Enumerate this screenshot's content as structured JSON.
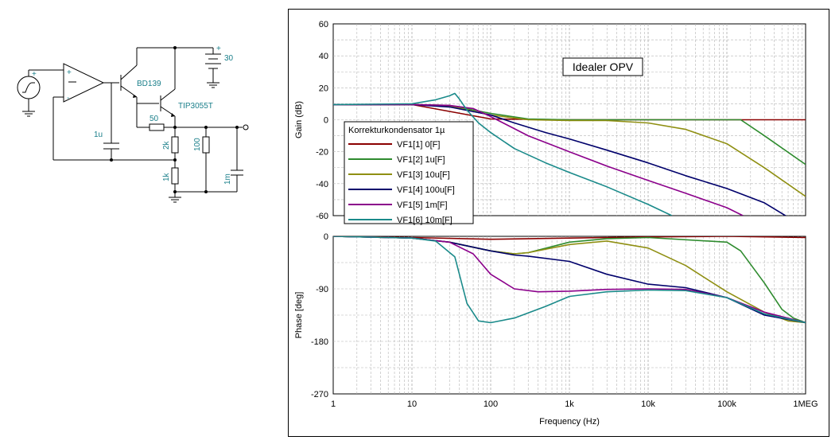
{
  "schematic": {
    "battery_label": "30",
    "q1_label": "BD139",
    "q2_label": "TIP3055T",
    "c_comp_label": "1u",
    "r50_label": "50",
    "r2k_label": "2k",
    "r1k_label": "1k",
    "r100_label": "100",
    "c_load_label": "1m",
    "plus_sign": "+",
    "minus_sign": "-"
  },
  "colors": {
    "series": [
      "#8b0000",
      "#2e8b2e",
      "#8f8f12",
      "#00006b",
      "#8b008b",
      "#1a8a8a"
    ],
    "grid": "#b4b4b4",
    "component": "#1a7f8a"
  },
  "chart_data": [
    {
      "type": "line",
      "xscale": "log",
      "xlim": [
        1,
        1000000
      ],
      "ylim": [
        -60,
        60
      ],
      "yticks": [
        -60,
        -40,
        -20,
        0,
        20,
        40,
        60
      ],
      "ylabel": "Gain (dB)",
      "annotation": "Idealer OPV",
      "legend_title": "Korrekturkondensator 1µ",
      "legend_placement": "lower-left",
      "grid": true,
      "series": [
        {
          "name": "VF1[1]  0[F]",
          "x": [
            1,
            10,
            100,
            1000,
            10000,
            100000,
            1000000
          ],
          "y": [
            9.5,
            9.5,
            0.5,
            0,
            0,
            0,
            0
          ]
        },
        {
          "name": "VF1[2]  1u[F]",
          "x": [
            1,
            10,
            30,
            100,
            300,
            1000,
            10000,
            100000,
            150000,
            300000,
            1000000
          ],
          "y": [
            9.5,
            9.5,
            9,
            4,
            0.5,
            0,
            0,
            0,
            0,
            -10,
            -28
          ]
        },
        {
          "name": "VF1[3]  10u[F]",
          "x": [
            1,
            10,
            30,
            100,
            300,
            1000,
            3000,
            10000,
            30000,
            100000,
            300000,
            1000000
          ],
          "y": [
            9.5,
            9.5,
            8.5,
            3,
            0,
            -0.5,
            -0.5,
            -2,
            -6,
            -15,
            -30,
            -48
          ]
        },
        {
          "name": "VF1[4]  100u[F]",
          "x": [
            1,
            10,
            30,
            100,
            200,
            500,
            1000,
            3000,
            10000,
            30000,
            100000,
            300000,
            600000
          ],
          "y": [
            9.5,
            9.5,
            8,
            3,
            -2,
            -8,
            -12,
            -19,
            -27,
            -35,
            -43,
            -52,
            -61
          ]
        },
        {
          "name": "VF1[5]  1m[F]",
          "x": [
            1,
            10,
            30,
            60,
            100,
            300,
            1000,
            3000,
            10000,
            30000,
            100000,
            160000
          ],
          "y": [
            9.5,
            9.5,
            9,
            7,
            2,
            -10,
            -20,
            -29,
            -38,
            -46,
            -55,
            -60
          ]
        },
        {
          "name": "VF1[6]  10m[F]",
          "x": [
            1,
            10,
            20,
            30,
            35,
            40,
            50,
            70,
            100,
            200,
            500,
            1000,
            3000,
            10000,
            20000
          ],
          "y": [
            9.5,
            10,
            12.5,
            15,
            16.5,
            13,
            6,
            -2,
            -8,
            -18,
            -27,
            -33,
            -42,
            -53,
            -60
          ]
        }
      ]
    },
    {
      "type": "line",
      "xscale": "log",
      "xlim": [
        1,
        1000000
      ],
      "ylim": [
        -270,
        0
      ],
      "yticks": [
        -270,
        -180,
        -90,
        0
      ],
      "xticks": [
        "1",
        "10",
        "100",
        "1k",
        "10k",
        "100k",
        "1MEG"
      ],
      "xlabel": "Frequency (Hz)",
      "ylabel": "Phase [deg]",
      "grid": true,
      "series": [
        {
          "name": "VF1[1]  0[F]",
          "x": [
            1,
            10,
            100,
            1000,
            10000,
            100000,
            1000000
          ],
          "y": [
            0,
            -2,
            -5,
            -3,
            -1,
            0,
            -2
          ]
        },
        {
          "name": "VF1[2]  1u[F]",
          "x": [
            1,
            10,
            30,
            100,
            200,
            300,
            1000,
            3000,
            10000,
            100000,
            150000,
            300000,
            500000,
            700000,
            1000000
          ],
          "y": [
            0,
            -3,
            -10,
            -25,
            -30,
            -28,
            -10,
            -4,
            -2,
            -10,
            -25,
            -80,
            -125,
            -140,
            -148
          ]
        },
        {
          "name": "VF1[3]  10u[F]",
          "x": [
            1,
            10,
            30,
            100,
            200,
            300,
            1000,
            3000,
            10000,
            30000,
            100000,
            300000,
            600000,
            1000000
          ],
          "y": [
            0,
            -3,
            -10,
            -25,
            -30,
            -28,
            -14,
            -8,
            -20,
            -50,
            -95,
            -130,
            -145,
            -148
          ]
        },
        {
          "name": "VF1[4]  100u[F]",
          "x": [
            1,
            10,
            30,
            100,
            200,
            300,
            1000,
            3000,
            10000,
            30000,
            100000,
            300000,
            1000000
          ],
          "y": [
            0,
            -3,
            -10,
            -25,
            -32,
            -34,
            -43,
            -65,
            -82,
            -88,
            -105,
            -135,
            -148
          ]
        },
        {
          "name": "VF1[5]  1m[F]",
          "x": [
            1,
            10,
            30,
            60,
            100,
            200,
            400,
            1000,
            3000,
            10000,
            30000,
            100000,
            300000,
            1000000
          ],
          "y": [
            0,
            -3,
            -10,
            -30,
            -65,
            -90,
            -95,
            -94,
            -91,
            -90,
            -91,
            -105,
            -130,
            -148
          ]
        },
        {
          "name": "VF1[6]  10m[F]",
          "x": [
            1,
            10,
            20,
            35,
            50,
            70,
            100,
            200,
            500,
            1000,
            3000,
            10000,
            30000,
            100000,
            300000,
            1000000
          ],
          "y": [
            0,
            -3,
            -8,
            -35,
            -115,
            -145,
            -148,
            -140,
            -120,
            -103,
            -95,
            -92,
            -93,
            -105,
            -133,
            -148
          ]
        }
      ]
    }
  ]
}
